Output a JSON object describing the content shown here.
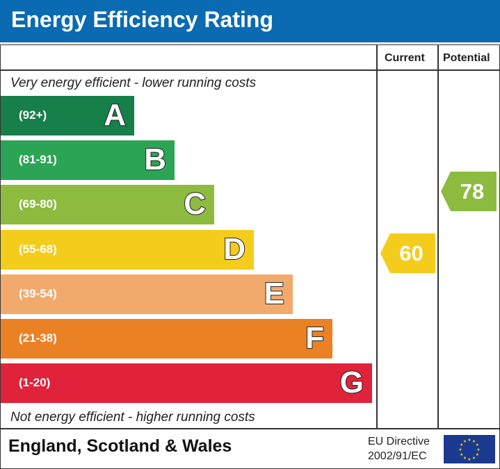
{
  "header": {
    "title": "Energy Efficiency Rating"
  },
  "columns": {
    "current": "Current",
    "potential": "Potential"
  },
  "notes": {
    "top": "Very energy efficient - lower running costs",
    "bottom": "Not energy efficient - higher running costs"
  },
  "chart_data": {
    "type": "bar",
    "bands": [
      {
        "letter": "A",
        "range": "(92+)",
        "color": "#177f4a"
      },
      {
        "letter": "B",
        "range": "(81-91)",
        "color": "#2ba455"
      },
      {
        "letter": "C",
        "range": "(69-80)",
        "color": "#8dbb3f"
      },
      {
        "letter": "D",
        "range": "(55-68)",
        "color": "#f4cc1c"
      },
      {
        "letter": "E",
        "range": "(39-54)",
        "color": "#f2aa6c"
      },
      {
        "letter": "F",
        "range": "(21-38)",
        "color": "#eb8125"
      },
      {
        "letter": "G",
        "range": "(1-20)",
        "color": "#e0233b"
      }
    ],
    "current": {
      "value": "60",
      "band": "D",
      "color": "#f4cc1c"
    },
    "potential": {
      "value": "78",
      "band": "C",
      "color": "#8dbb3f"
    }
  },
  "footer": {
    "region": "England, Scotland & Wales",
    "directive_line1": "EU Directive",
    "directive_line2": "2002/91/EC",
    "flag": "eu-flag-icon"
  }
}
